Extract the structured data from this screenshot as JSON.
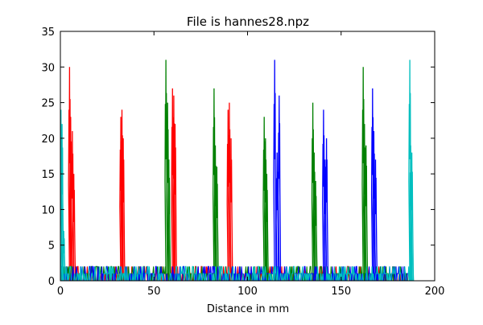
{
  "chart_data": {
    "type": "line",
    "title": "File is hannes28.npz",
    "xlabel": "Distance in mm",
    "ylabel": "",
    "xlim": [
      0,
      200
    ],
    "ylim": [
      0,
      35
    ],
    "xticks": [
      0,
      50,
      100,
      150,
      200
    ],
    "yticks": [
      0,
      5,
      10,
      15,
      20,
      25,
      30,
      35
    ],
    "grid": false,
    "legend": "none",
    "series": [
      {
        "color": "#ff0000",
        "peaks": [
          {
            "x": 4.9,
            "y": 30
          },
          {
            "x": 5.5,
            "y": 23
          },
          {
            "x": 6.4,
            "y": 21
          },
          {
            "x": 7.2,
            "y": 15
          },
          {
            "x": 32.3,
            "y": 23
          },
          {
            "x": 32.9,
            "y": 24
          },
          {
            "x": 33.6,
            "y": 20
          },
          {
            "x": 59.9,
            "y": 27
          },
          {
            "x": 60.6,
            "y": 26
          },
          {
            "x": 61.3,
            "y": 22
          },
          {
            "x": 89.6,
            "y": 24
          },
          {
            "x": 90.3,
            "y": 25
          },
          {
            "x": 91.2,
            "y": 20
          }
        ],
        "baseline_range": [
          0,
          188
        ]
      },
      {
        "color": "#008000",
        "peaks": [
          {
            "x": 56.4,
            "y": 31
          },
          {
            "x": 57.3,
            "y": 25
          },
          {
            "x": 58.0,
            "y": 17
          },
          {
            "x": 82.1,
            "y": 27
          },
          {
            "x": 82.8,
            "y": 19
          },
          {
            "x": 83.6,
            "y": 16
          },
          {
            "x": 108.9,
            "y": 23
          },
          {
            "x": 109.6,
            "y": 20
          },
          {
            "x": 110.3,
            "y": 15
          },
          {
            "x": 134.9,
            "y": 25
          },
          {
            "x": 135.6,
            "y": 18
          },
          {
            "x": 136.4,
            "y": 14
          },
          {
            "x": 161.8,
            "y": 30
          },
          {
            "x": 162.5,
            "y": 22
          },
          {
            "x": 163.3,
            "y": 19
          }
        ],
        "baseline_range": [
          0,
          188
        ]
      },
      {
        "color": "#0000ff",
        "peaks": [
          {
            "x": 114.5,
            "y": 31
          },
          {
            "x": 115.8,
            "y": 18
          },
          {
            "x": 116.9,
            "y": 26
          },
          {
            "x": 140.6,
            "y": 24
          },
          {
            "x": 141.4,
            "y": 17
          },
          {
            "x": 142.2,
            "y": 20
          },
          {
            "x": 166.8,
            "y": 27
          },
          {
            "x": 167.5,
            "y": 21
          },
          {
            "x": 168.4,
            "y": 17
          }
        ],
        "baseline_range": [
          0,
          188
        ]
      },
      {
        "color": "#00bfbf",
        "peaks": [
          {
            "x": 0.3,
            "y": 24
          },
          {
            "x": 0.9,
            "y": 22
          },
          {
            "x": 1.8,
            "y": 7
          },
          {
            "x": 186.7,
            "y": 31
          },
          {
            "x": 187.2,
            "y": 19
          },
          {
            "x": 187.8,
            "y": 18
          }
        ],
        "baseline_range": [
          0,
          188
        ]
      }
    ]
  }
}
